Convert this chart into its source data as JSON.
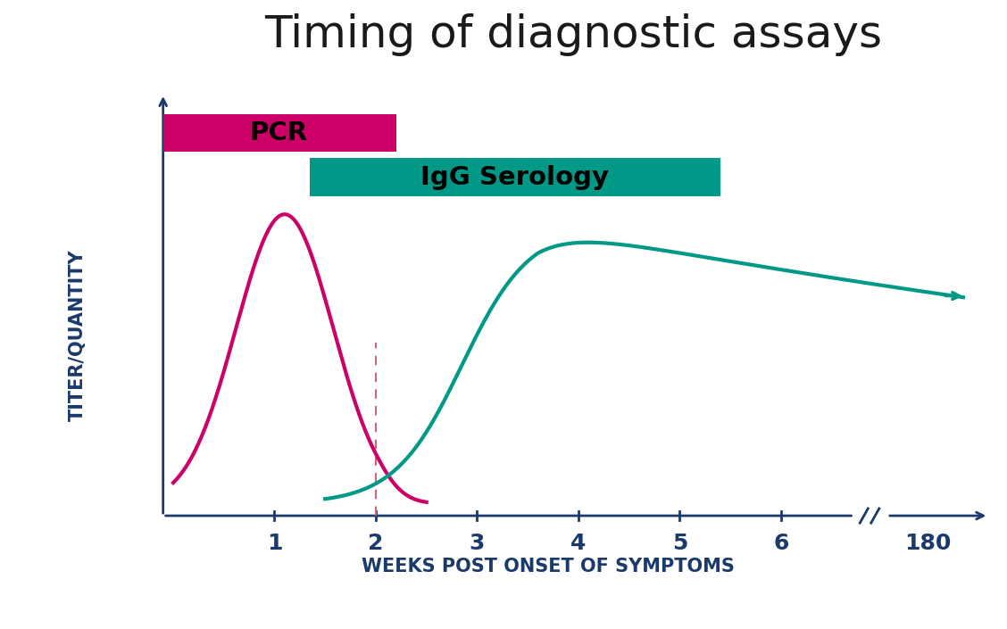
{
  "title": "Timing of diagnostic assays",
  "title_fontsize": 36,
  "title_color": "#1a1a1a",
  "xlabel": "WEEKS POST ONSET OF SYMPTOMS",
  "ylabel": "TITER/QUANTITY",
  "axis_color": "#1a3a6b",
  "label_color": "#1a3a6b",
  "background_color": "#ffffff",
  "pcr_color": "#cc0066",
  "igg_color": "#009988",
  "dashed_line_color": "#cc6677",
  "pcr_label": "PCR",
  "igg_label": "IgG Serology",
  "axis_label_fontsize": 16,
  "tick_fontsize": 18
}
